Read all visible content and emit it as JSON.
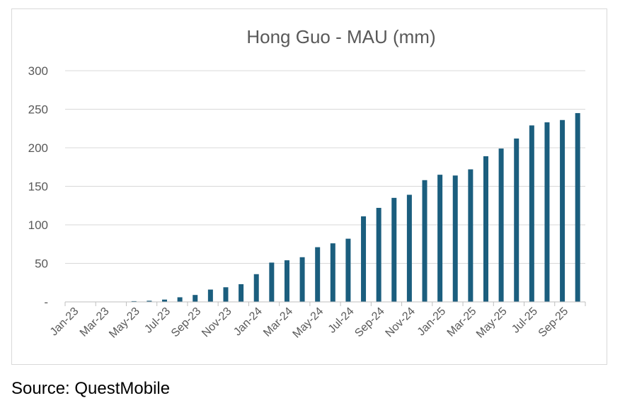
{
  "source_note": "Source: QuestMobile",
  "chart_data": {
    "type": "bar",
    "title": "Hong Guo - MAU (mm)",
    "xlabel": "",
    "ylabel": "",
    "ylim": [
      0,
      300
    ],
    "yticks": [
      0,
      50,
      100,
      150,
      200,
      250,
      300
    ],
    "ytick_labels": [
      "-",
      "50",
      "100",
      "150",
      "200",
      "250",
      "300"
    ],
    "grid": true,
    "bar_color": "#1b5e7e",
    "categories": [
      "Jan-23",
      "Feb-23",
      "Mar-23",
      "Apr-23",
      "May-23",
      "Jun-23",
      "Jul-23",
      "Aug-23",
      "Sep-23",
      "Oct-23",
      "Nov-23",
      "Dec-23",
      "Jan-24",
      "Feb-24",
      "Mar-24",
      "Apr-24",
      "May-24",
      "Jun-24",
      "Jul-24",
      "Aug-24",
      "Sep-24",
      "Oct-24",
      "Nov-24",
      "Dec-24",
      "Jan-25",
      "Feb-25",
      "Mar-25",
      "Apr-25",
      "May-25",
      "Jun-25",
      "Jul-25",
      "Aug-25",
      "Sep-25",
      "Oct-25"
    ],
    "tick_labels_shown": [
      "Jan-23",
      "Mar-23",
      "May-23",
      "Jul-23",
      "Sep-23",
      "Nov-23",
      "Jan-24",
      "Mar-24",
      "May-24",
      "Jul-24",
      "Sep-24",
      "Nov-24",
      "Jan-25",
      "Mar-25",
      "May-25",
      "Jul-25",
      "Sep-25"
    ],
    "values": [
      0,
      0,
      0,
      0,
      1,
      1.5,
      3,
      6,
      9,
      16,
      19,
      23,
      36,
      51,
      54,
      58,
      71,
      76,
      82,
      111,
      122,
      135,
      139,
      158,
      165,
      164,
      172,
      189,
      199,
      212,
      229,
      233,
      236,
      245
    ]
  }
}
